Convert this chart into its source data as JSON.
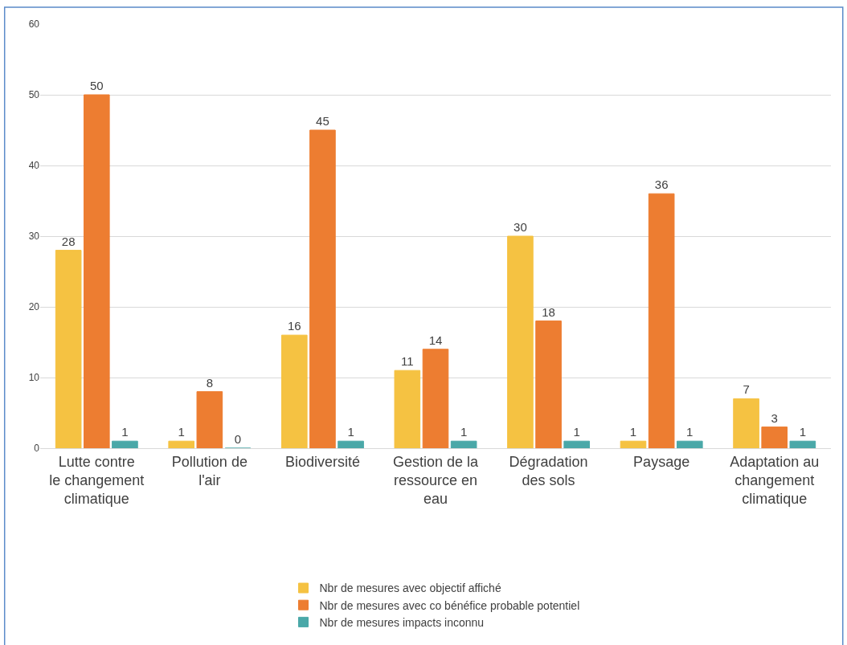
{
  "chart_data": {
    "type": "bar",
    "categories": [
      "Lutte contre le changement climatique",
      "Pollution de l'air",
      "Biodiversité",
      "Gestion de la ressource en eau",
      "Dégradation des sols",
      "Paysage",
      "Adaptation au changement climatique"
    ],
    "series": [
      {
        "name": "Nbr de mesures avec objectif affiché",
        "color": "#f5c242",
        "values": [
          28,
          1,
          16,
          11,
          30,
          1,
          7
        ]
      },
      {
        "name": "Nbr de mesures avec co bénéfice probable potentiel",
        "color": "#ed7d31",
        "values": [
          50,
          8,
          45,
          14,
          18,
          36,
          3
        ]
      },
      {
        "name": "Nbr de mesures impacts inconnu",
        "color": "#4aa8a8",
        "values": [
          1,
          0,
          1,
          1,
          1,
          1,
          1
        ]
      }
    ],
    "ylim": [
      0,
      60
    ],
    "yticks": [
      0,
      10,
      20,
      30,
      40,
      50,
      60
    ],
    "grid": "y",
    "legend": "bottom",
    "data_labels": true
  }
}
